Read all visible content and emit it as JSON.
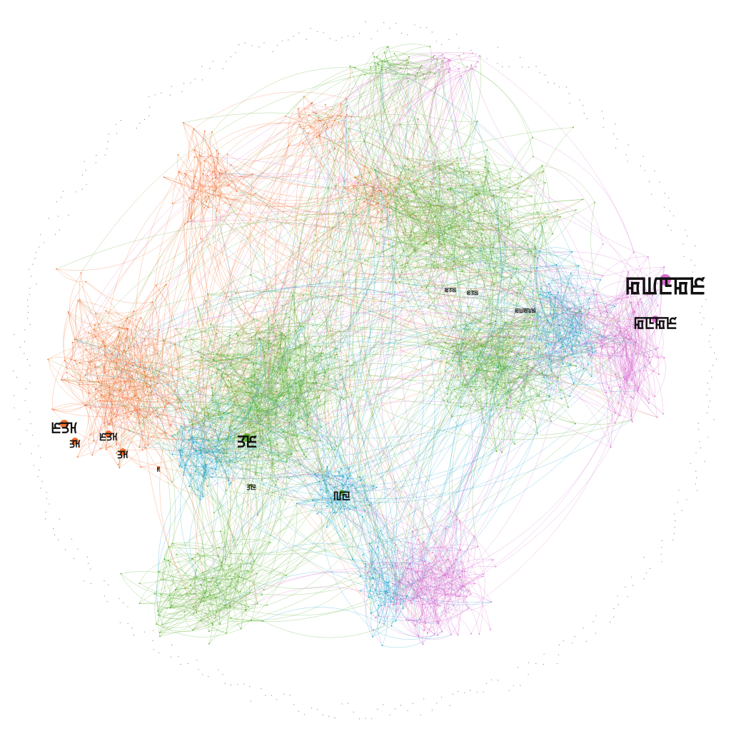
{
  "graph": {
    "communities": [
      {
        "id": "orange",
        "color": "#F07030"
      },
      {
        "id": "green",
        "color": "#5DB030"
      },
      {
        "id": "cyan",
        "color": "#20A8D0"
      },
      {
        "id": "pink",
        "color": "#D870D0"
      }
    ],
    "background": "#ffffff",
    "labeled_nodes": [
      {
        "label": "ꡂꡆꡇꡂꡈ",
        "community": "pink",
        "size": "xlarge",
        "prominence": 5
      },
      {
        "label": "ꡂꡇꡂꡈ",
        "community": "pink",
        "size": "large",
        "prominence": 4
      },
      {
        "label": "ꡈꡗꡘ",
        "community": "orange",
        "size": "large",
        "prominence": 4
      },
      {
        "label": "ꡗꡘ",
        "community": "orange",
        "size": "medium",
        "prominence": 3
      },
      {
        "label": "ꡈꡗꡘ",
        "community": "orange",
        "size": "medium",
        "prominence": 3
      },
      {
        "label": "ꡗꡘ",
        "community": "orange",
        "size": "medium",
        "prominence": 3
      },
      {
        "label": "ꡗꡈ",
        "community": "green",
        "size": "large",
        "prominence": 4
      },
      {
        "label": "ꡃꡙ",
        "community": "green",
        "size": "medium",
        "prominence": 3
      },
      {
        "label": "ꡘ",
        "community": "orange",
        "size": "small",
        "prominence": 2
      },
      {
        "label": "ꡗꡙ",
        "community": "green",
        "size": "small",
        "prominence": 2
      },
      {
        "label": "ꡂꡗꡙ",
        "community": "green",
        "size": "small",
        "prominence": 1
      },
      {
        "label": "ꡂꡗꡙ",
        "community": "green",
        "size": "small",
        "prominence": 1
      },
      {
        "label": "ꡂꡆꡂꡃꡙ",
        "community": "green",
        "size": "small",
        "prominence": 1
      }
    ]
  }
}
